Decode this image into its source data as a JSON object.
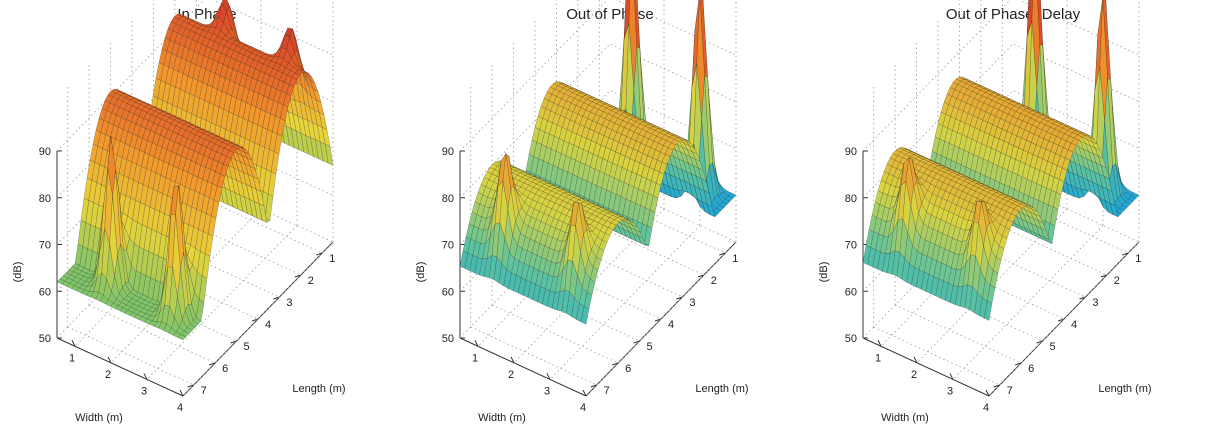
{
  "chart_data": [
    {
      "type": "surface",
      "title": "In Phase",
      "zlabel": "(dB)",
      "xlabel": "Width (m)",
      "ylabel": "Length (m)",
      "zlim": [
        50,
        90
      ],
      "xlim": [
        0.5,
        4
      ],
      "ylim": [
        0.5,
        7.5
      ],
      "zticks": [
        "50",
        "60",
        "70",
        "80",
        "90"
      ],
      "xticks": [
        "1",
        "2",
        "3",
        "4"
      ],
      "yticks": [
        "1",
        "2",
        "3",
        "4",
        "5",
        "6",
        "7"
      ],
      "grid": true,
      "colormap": [
        "#17a9a3",
        "#7cc46b",
        "#e6d43a",
        "#f39a2c",
        "#d9452b",
        "#6e3523"
      ],
      "ridges": [
        {
          "length_center": 2.0,
          "half_width": 1.2,
          "crest_db": 93,
          "floor_db": 62
        },
        {
          "length_center": 5.0,
          "half_width": 1.2,
          "crest_db": 91,
          "floor_db": 62
        }
      ],
      "peaks": [
        {
          "width": 1.6,
          "length": 1.5,
          "db": 99
        },
        {
          "width": 3.4,
          "length": 1.5,
          "db": 99
        },
        {
          "width": 1.6,
          "length": 6.8,
          "db": 94
        },
        {
          "width": 3.4,
          "length": 6.8,
          "db": 92
        }
      ]
    },
    {
      "type": "surface",
      "title": "Out of Phase",
      "zlabel": "(dB)",
      "xlabel": "Width (m)",
      "ylabel": "Length (m)",
      "zlim": [
        50,
        90
      ],
      "xlim": [
        0.5,
        4
      ],
      "ylim": [
        0.5,
        7.5
      ],
      "zticks": [
        "50",
        "60",
        "70",
        "80",
        "90"
      ],
      "xticks": [
        "1",
        "2",
        "3",
        "4"
      ],
      "yticks": [
        "1",
        "2",
        "3",
        "4",
        "5",
        "6",
        "7"
      ],
      "grid": true,
      "colormap": [
        "#3a4fb8",
        "#1ea6d8",
        "#5cc3a0",
        "#d9d440",
        "#ef8e2c",
        "#d43a2a",
        "#6e3523"
      ],
      "ridges": [
        {
          "length_center": 3.2,
          "half_width": 1.3,
          "crest_db": 84,
          "floor_db": 58
        },
        {
          "length_center": 6.0,
          "half_width": 1.3,
          "crest_db": 80,
          "floor_db": 60
        }
      ],
      "peaks": [
        {
          "width": 1.4,
          "length": 1.0,
          "db": 110
        },
        {
          "width": 3.3,
          "length": 1.0,
          "db": 106
        },
        {
          "width": 1.4,
          "length": 6.9,
          "db": 91
        },
        {
          "width": 3.4,
          "length": 6.9,
          "db": 88
        }
      ]
    },
    {
      "type": "surface",
      "title": "Out of Phase, Delay",
      "zlabel": "(dB)",
      "xlabel": "Width (m)",
      "ylabel": "Length (m)",
      "zlim": [
        50,
        90
      ],
      "xlim": [
        0.5,
        4
      ],
      "ylim": [
        0.5,
        7.5
      ],
      "zticks": [
        "50",
        "60",
        "70",
        "80",
        "90"
      ],
      "xticks": [
        "1",
        "2",
        "3",
        "4"
      ],
      "yticks": [
        "1",
        "2",
        "3",
        "4",
        "5",
        "6",
        "7"
      ],
      "grid": true,
      "colormap": [
        "#1e78d0",
        "#1ea6d8",
        "#5cc3a0",
        "#d9d440",
        "#ef8e2c",
        "#d43a2a",
        "#6e3523"
      ],
      "ridges": [
        {
          "length_center": 3.2,
          "half_width": 1.3,
          "crest_db": 85,
          "floor_db": 58
        },
        {
          "length_center": 6.0,
          "half_width": 1.3,
          "crest_db": 83,
          "floor_db": 60
        }
      ],
      "peaks": [
        {
          "width": 1.4,
          "length": 1.0,
          "db": 111
        },
        {
          "width": 3.3,
          "length": 1.0,
          "db": 105
        },
        {
          "width": 1.4,
          "length": 6.9,
          "db": 90
        },
        {
          "width": 3.4,
          "length": 6.9,
          "db": 88
        }
      ]
    }
  ]
}
